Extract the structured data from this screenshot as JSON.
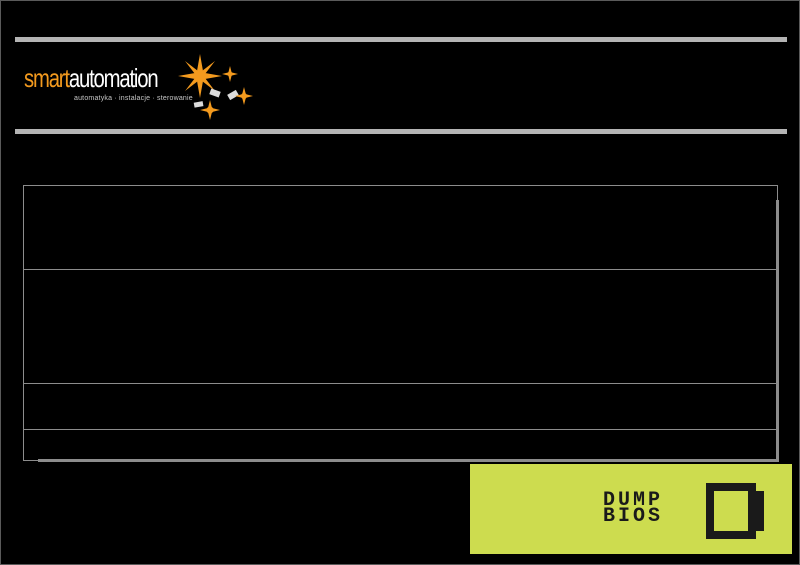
{
  "header": {
    "logo": {
      "word_part1": "smart",
      "word_part2": "automation",
      "tagline": "automatyka · instalacje · sterowanie",
      "accent": "#f39a1e"
    }
  },
  "banner": {
    "line1": "DUMP",
    "line2": "BIOS",
    "background": "#cddc4f"
  },
  "icons": {
    "logo_mark": "gear-star-icon",
    "banner_icon": "window-icon"
  }
}
